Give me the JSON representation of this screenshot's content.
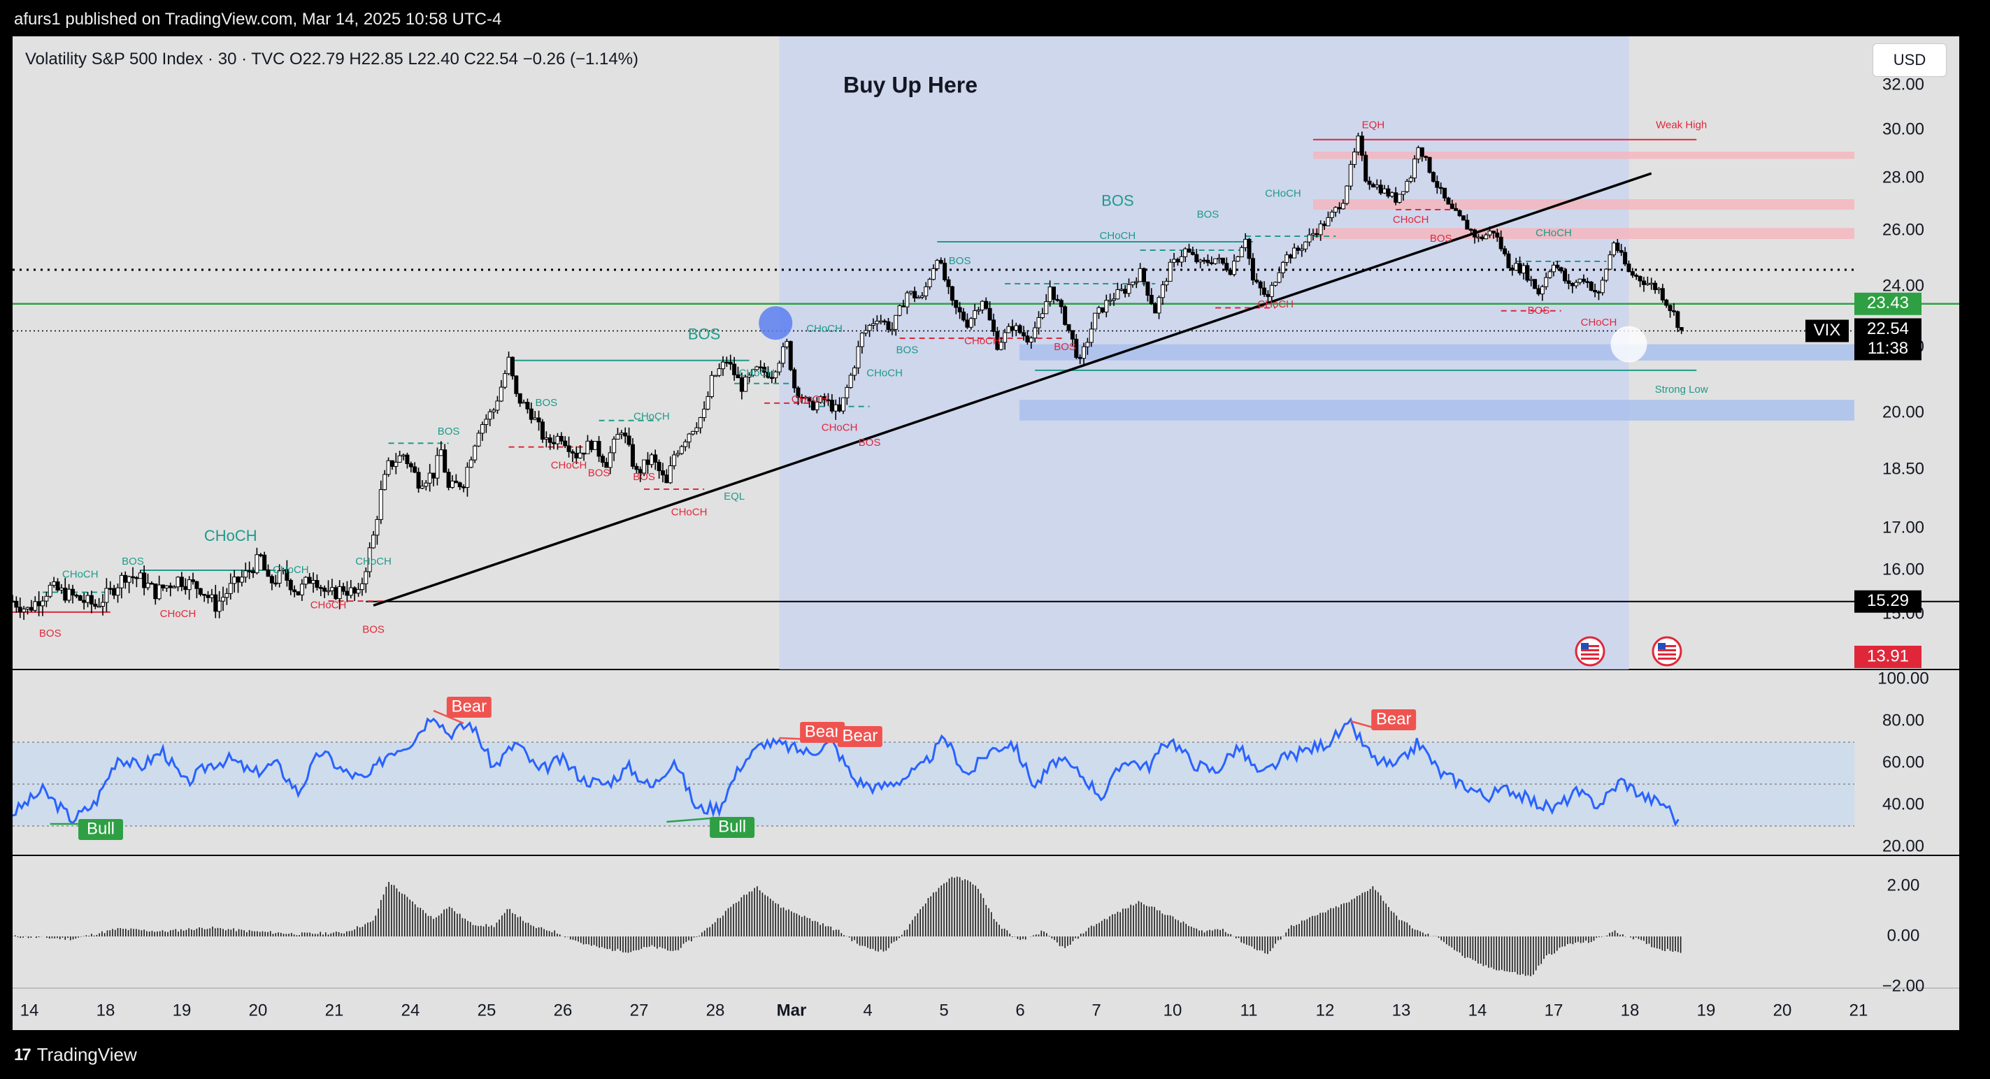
{
  "header": {
    "published": "afurs1 published on TradingView.com, Mar 14, 2025 10:58 UTC-4"
  },
  "legend": {
    "symbol": "Volatility S&P 500 Index · 30 · TVC",
    "open_label": "O",
    "open": "22.79",
    "high_label": "H",
    "high": "22.85",
    "low_label": "L",
    "low": "22.40",
    "close_label": "C",
    "close": "22.54",
    "change": "−0.26 (−1.14%)"
  },
  "currency_button": "USD",
  "annotation": {
    "title": "Buy Up Here"
  },
  "footer": {
    "brand": "TradingView",
    "logo_text": "17"
  },
  "chart_data": [
    {
      "type": "candlestick",
      "title": "Volatility S&P 500 Index · 30 · TVC",
      "y_ticks": [
        "32.00",
        "30.00",
        "28.00",
        "26.00",
        "24.00",
        "22.00",
        "20.00",
        "18.50",
        "17.00",
        "16.00",
        "15.00"
      ],
      "x_ticks": [
        "14",
        "18",
        "19",
        "20",
        "21",
        "24",
        "25",
        "26",
        "27",
        "28",
        "Mar",
        "4",
        "5",
        "6",
        "7",
        "10",
        "11",
        "12",
        "13",
        "14",
        "17",
        "18",
        "19",
        "20",
        "21"
      ],
      "price_tags": [
        {
          "label": "23.43",
          "value": 23.43,
          "color": "#2ea043"
        },
        {
          "label": "22.54",
          "value": 22.54,
          "color": "#000000",
          "symbol": "VIX",
          "countdown": "11:38"
        },
        {
          "label": "15.29",
          "value": 15.29,
          "color": "#000000"
        },
        {
          "label": "13.91",
          "value": 13.91,
          "color": "#e0273a"
        }
      ],
      "structure_labels": [
        "BOS",
        "CHoCH",
        "EQH",
        "EQL",
        "Weak High",
        "Strong Low"
      ],
      "price_path": [
        [
          0,
          15.3
        ],
        [
          2,
          15.1
        ],
        [
          5,
          15.6
        ],
        [
          8,
          15.4
        ],
        [
          11,
          15.2
        ],
        [
          13,
          15.5
        ],
        [
          15,
          15.9
        ],
        [
          17,
          15.8
        ],
        [
          19,
          15.5
        ],
        [
          22,
          15.8
        ],
        [
          25,
          15.6
        ],
        [
          27,
          15.2
        ],
        [
          29,
          15.6
        ],
        [
          31,
          15.9
        ],
        [
          33,
          16.3
        ],
        [
          34,
          15.7
        ],
        [
          36,
          15.9
        ],
        [
          38,
          15.5
        ],
        [
          40,
          15.9
        ],
        [
          42,
          15.4
        ],
        [
          44,
          15.6
        ],
        [
          46,
          15.4
        ],
        [
          48,
          16.8
        ],
        [
          49,
          17.9
        ],
        [
          50,
          18.6
        ],
        [
          52,
          18.9
        ],
        [
          54,
          18.2
        ],
        [
          56,
          18.4
        ],
        [
          57,
          19.0
        ],
        [
          58,
          18.0
        ],
        [
          60,
          18.2
        ],
        [
          62,
          19.6
        ],
        [
          64,
          20.1
        ],
        [
          65,
          20.8
        ],
        [
          66,
          21.6
        ],
        [
          67,
          20.5
        ],
        [
          69,
          20.0
        ],
        [
          71,
          19.2
        ],
        [
          73,
          19.4
        ],
        [
          75,
          18.9
        ],
        [
          77,
          19.2
        ],
        [
          79,
          18.7
        ],
        [
          81,
          19.6
        ],
        [
          83,
          18.4
        ],
        [
          85,
          18.8
        ],
        [
          87,
          18.1
        ],
        [
          88,
          18.9
        ],
        [
          90,
          19.5
        ],
        [
          92,
          20.0
        ],
        [
          93,
          21.0
        ],
        [
          95,
          21.6
        ],
        [
          97,
          20.8
        ],
        [
          99,
          21.3
        ],
        [
          101,
          21.2
        ],
        [
          103,
          22.1
        ],
        [
          104,
          20.8
        ],
        [
          106,
          20.2
        ],
        [
          108,
          20.4
        ],
        [
          110,
          20.0
        ],
        [
          112,
          21.5
        ],
        [
          113,
          22.4
        ],
        [
          115,
          23.0
        ],
        [
          117,
          22.6
        ],
        [
          119,
          23.8
        ],
        [
          121,
          23.6
        ],
        [
          123,
          25.1
        ],
        [
          125,
          23.4
        ],
        [
          127,
          22.8
        ],
        [
          129,
          23.6
        ],
        [
          131,
          22.1
        ],
        [
          133,
          22.7
        ],
        [
          135,
          22.3
        ],
        [
          137,
          23.0
        ],
        [
          138,
          24.0
        ],
        [
          140,
          22.9
        ],
        [
          142,
          21.5
        ],
        [
          144,
          23.0
        ],
        [
          146,
          23.6
        ],
        [
          148,
          23.9
        ],
        [
          150,
          24.5
        ],
        [
          152,
          23.2
        ],
        [
          154,
          24.7
        ],
        [
          156,
          25.3
        ],
        [
          158,
          24.8
        ],
        [
          160,
          25.0
        ],
        [
          162,
          24.6
        ],
        [
          164,
          25.8
        ],
        [
          165,
          24.2
        ],
        [
          167,
          23.6
        ],
        [
          169,
          25.0
        ],
        [
          171,
          25.3
        ],
        [
          173,
          25.9
        ],
        [
          175,
          26.4
        ],
        [
          177,
          27.2
        ],
        [
          179,
          29.6
        ],
        [
          180,
          28.0
        ],
        [
          182,
          27.6
        ],
        [
          184,
          27.2
        ],
        [
          186,
          28.1
        ],
        [
          187,
          29.4
        ],
        [
          189,
          28.0
        ],
        [
          191,
          26.9
        ],
        [
          193,
          26.3
        ],
        [
          195,
          25.7
        ],
        [
          197,
          26.0
        ],
        [
          199,
          24.8
        ],
        [
          201,
          24.6
        ],
        [
          203,
          23.8
        ],
        [
          205,
          24.9
        ],
        [
          207,
          24.0
        ],
        [
          209,
          24.3
        ],
        [
          211,
          23.7
        ],
        [
          213,
          25.6
        ],
        [
          215,
          24.5
        ],
        [
          217,
          24.2
        ],
        [
          219,
          23.9
        ],
        [
          221,
          23.1
        ],
        [
          222,
          22.54
        ]
      ],
      "trendline": {
        "from": [
          48,
          15.2
        ],
        "to": [
          218,
          28.2
        ]
      },
      "rectangles": [
        {
          "kind": "highlight",
          "from_x": 102,
          "to_x": 215,
          "color": "#c8d3f0"
        },
        {
          "kind": "supply",
          "from_y": 28.8,
          "to_y": 29.1,
          "color": "#f4b6bd"
        },
        {
          "kind": "supply",
          "from_y": 26.8,
          "to_y": 27.2,
          "color": "#f4b6bd"
        },
        {
          "kind": "supply",
          "from_y": 25.7,
          "to_y": 26.1,
          "color": "#f4b6bd"
        },
        {
          "kind": "demand",
          "from_y": 21.6,
          "to_y": 22.1,
          "color": "#a9c0ec"
        },
        {
          "kind": "demand",
          "from_y": 19.8,
          "to_y": 20.4,
          "color": "#a9c0ec"
        }
      ]
    },
    {
      "type": "line",
      "y_ticks": [
        "100.00",
        "80.00",
        "60.00",
        "40.00",
        "20.00"
      ],
      "ylim": [
        20,
        100
      ],
      "bands": [
        30,
        50,
        70
      ],
      "signals": [
        {
          "label": "Bull",
          "x": 8,
          "value": 31,
          "color": "#2ea043"
        },
        {
          "label": "Bear",
          "x": 57,
          "value": 84,
          "color": "#ef5350"
        },
        {
          "label": "Bull",
          "x": 92,
          "value": 32,
          "color": "#2ea043"
        },
        {
          "label": "Bear",
          "x": 104,
          "value": 72,
          "color": "#ef5350"
        },
        {
          "label": "Bear",
          "x": 109,
          "value": 70,
          "color": "#ef5350"
        },
        {
          "label": "Bear",
          "x": 180,
          "value": 78,
          "color": "#ef5350"
        }
      ],
      "values_path": [
        [
          0,
          36
        ],
        [
          4,
          47
        ],
        [
          8,
          33
        ],
        [
          11,
          41
        ],
        [
          14,
          63
        ],
        [
          17,
          58
        ],
        [
          20,
          66
        ],
        [
          23,
          50
        ],
        [
          26,
          59
        ],
        [
          29,
          62
        ],
        [
          32,
          55
        ],
        [
          35,
          60
        ],
        [
          38,
          46
        ],
        [
          41,
          66
        ],
        [
          44,
          56
        ],
        [
          47,
          52
        ],
        [
          50,
          65
        ],
        [
          53,
          70
        ],
        [
          56,
          84
        ],
        [
          58,
          74
        ],
        [
          61,
          79
        ],
        [
          64,
          58
        ],
        [
          67,
          70
        ],
        [
          70,
          56
        ],
        [
          73,
          62
        ],
        [
          76,
          52
        ],
        [
          79,
          50
        ],
        [
          82,
          58
        ],
        [
          85,
          48
        ],
        [
          88,
          62
        ],
        [
          91,
          38
        ],
        [
          94,
          39
        ],
        [
          97,
          60
        ],
        [
          100,
          70
        ],
        [
          103,
          68
        ],
        [
          106,
          65
        ],
        [
          109,
          70
        ],
        [
          112,
          52
        ],
        [
          115,
          48
        ],
        [
          118,
          52
        ],
        [
          121,
          58
        ],
        [
          124,
          72
        ],
        [
          127,
          54
        ],
        [
          130,
          66
        ],
        [
          133,
          70
        ],
        [
          136,
          49
        ],
        [
          139,
          62
        ],
        [
          142,
          55
        ],
        [
          145,
          44
        ],
        [
          148,
          62
        ],
        [
          151,
          58
        ],
        [
          154,
          72
        ],
        [
          157,
          60
        ],
        [
          160,
          56
        ],
        [
          163,
          68
        ],
        [
          166,
          54
        ],
        [
          169,
          62
        ],
        [
          172,
          66
        ],
        [
          175,
          70
        ],
        [
          178,
          78
        ],
        [
          181,
          62
        ],
        [
          184,
          58
        ],
        [
          187,
          70
        ],
        [
          190,
          55
        ],
        [
          193,
          50
        ],
        [
          196,
          44
        ],
        [
          199,
          48
        ],
        [
          202,
          42
        ],
        [
          205,
          38
        ],
        [
          208,
          46
        ],
        [
          211,
          40
        ],
        [
          214,
          52
        ],
        [
          217,
          44
        ],
        [
          220,
          40
        ],
        [
          222,
          29
        ]
      ]
    },
    {
      "type": "bar",
      "y_ticks": [
        "2.00",
        "0.00",
        "−2.00"
      ],
      "ylim": [
        -2.2,
        2.8
      ],
      "values_path": [
        [
          0,
          0.0
        ],
        [
          8,
          -0.1
        ],
        [
          14,
          0.3
        ],
        [
          20,
          0.2
        ],
        [
          26,
          0.35
        ],
        [
          32,
          0.2
        ],
        [
          38,
          0.1
        ],
        [
          44,
          0.15
        ],
        [
          48,
          0.6
        ],
        [
          50,
          2.2
        ],
        [
          53,
          1.4
        ],
        [
          56,
          0.7
        ],
        [
          58,
          1.2
        ],
        [
          61,
          0.5
        ],
        [
          64,
          0.4
        ],
        [
          66,
          1.1
        ],
        [
          69,
          0.4
        ],
        [
          72,
          0.2
        ],
        [
          76,
          -0.3
        ],
        [
          79,
          -0.5
        ],
        [
          82,
          -0.6
        ],
        [
          85,
          -0.4
        ],
        [
          88,
          -0.6
        ],
        [
          92,
          0.2
        ],
        [
          96,
          1.3
        ],
        [
          99,
          2.0
        ],
        [
          102,
          1.2
        ],
        [
          106,
          0.7
        ],
        [
          110,
          0.2
        ],
        [
          113,
          -0.4
        ],
        [
          116,
          -0.6
        ],
        [
          119,
          0.3
        ],
        [
          122,
          1.6
        ],
        [
          125,
          2.4
        ],
        [
          128,
          2.1
        ],
        [
          131,
          0.5
        ],
        [
          134,
          -0.2
        ],
        [
          137,
          0.2
        ],
        [
          140,
          -0.5
        ],
        [
          143,
          0.3
        ],
        [
          146,
          0.8
        ],
        [
          150,
          1.4
        ],
        [
          154,
          0.8
        ],
        [
          158,
          0.2
        ],
        [
          161,
          0.3
        ],
        [
          164,
          -0.3
        ],
        [
          167,
          -0.7
        ],
        [
          170,
          0.4
        ],
        [
          174,
          0.9
        ],
        [
          178,
          1.4
        ],
        [
          181,
          2.0
        ],
        [
          184,
          0.8
        ],
        [
          187,
          0.2
        ],
        [
          190,
          -0.1
        ],
        [
          193,
          -0.8
        ],
        [
          196,
          -1.2
        ],
        [
          199,
          -1.4
        ],
        [
          202,
          -1.6
        ],
        [
          204,
          -0.8
        ],
        [
          207,
          -0.3
        ],
        [
          210,
          -0.2
        ],
        [
          213,
          0.2
        ],
        [
          216,
          -0.1
        ],
        [
          219,
          -0.5
        ],
        [
          222,
          -0.6
        ]
      ]
    }
  ]
}
